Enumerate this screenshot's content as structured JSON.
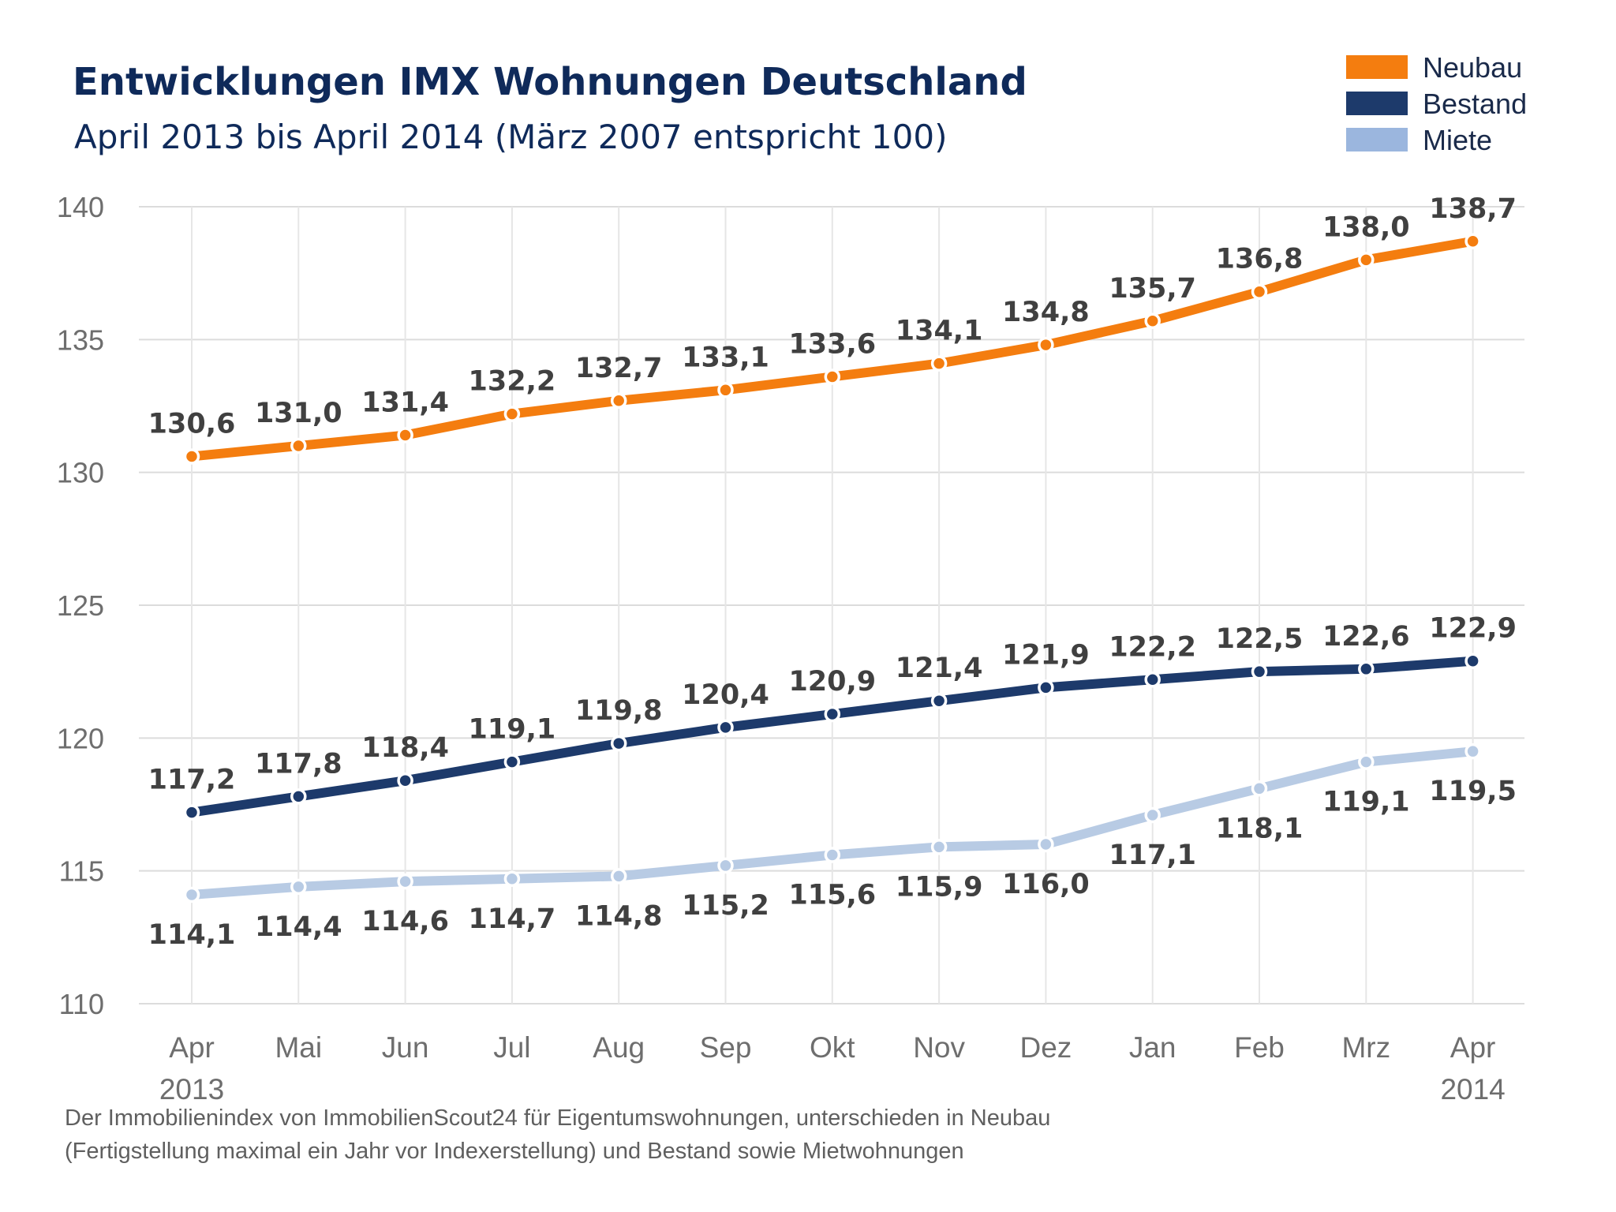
{
  "title": "Entwicklungen IMX Wohnungen Deutschland",
  "subtitle": "April 2013 bis April 2014 (März 2007 entspricht 100)",
  "footnote": [
    "Der Immobilienindex von ImmobilienScout24 für Eigentumswohnungen, unterschieden in Neubau",
    "(Fertigstellung maximal ein Jahr vor Indexerstellung) und Bestand sowie Mietwohnungen"
  ],
  "chart_data": {
    "type": "line",
    "categories": [
      "Apr",
      "Mai",
      "Jun",
      "Jul",
      "Aug",
      "Sep",
      "Okt",
      "Nov",
      "Dez",
      "Jan",
      "Feb",
      "Mrz",
      "Apr"
    ],
    "category_sublabels": [
      "2013",
      "",
      "",
      "",
      "",
      "",
      "",
      "",
      "",
      "",
      "",
      "",
      "2014"
    ],
    "ylim": [
      110,
      140
    ],
    "yticks": [
      110,
      115,
      120,
      125,
      130,
      135,
      140
    ],
    "grid": true,
    "legend_position": "top-right",
    "series": [
      {
        "name": "Neubau",
        "color": "#f47d0f",
        "values": [
          130.6,
          131.0,
          131.4,
          132.2,
          132.7,
          133.1,
          133.6,
          134.1,
          134.8,
          135.7,
          136.8,
          138.0,
          138.7
        ],
        "labels": [
          "130,6",
          "131,0",
          "131,4",
          "132,2",
          "132,7",
          "133,1",
          "133,6",
          "134,1",
          "134,8",
          "135,7",
          "136,8",
          "138,0",
          "138,7"
        ],
        "label_position": "above"
      },
      {
        "name": "Bestand",
        "color": "#1d3a6b",
        "values": [
          117.2,
          117.8,
          118.4,
          119.1,
          119.8,
          120.4,
          120.9,
          121.4,
          121.9,
          122.2,
          122.5,
          122.6,
          122.9
        ],
        "labels": [
          "117,2",
          "117,8",
          "118,4",
          "119,1",
          "119,8",
          "120,4",
          "120,9",
          "121,4",
          "121,9",
          "122,2",
          "122,5",
          "122,6",
          "122,9"
        ],
        "label_position": "above"
      },
      {
        "name": "Miete",
        "color": "#b8cbe4",
        "values": [
          114.1,
          114.4,
          114.6,
          114.7,
          114.8,
          115.2,
          115.6,
          115.9,
          116.0,
          117.1,
          118.1,
          119.1,
          119.5
        ],
        "labels": [
          "114,1",
          "114,4",
          "114,6",
          "114,7",
          "114,8",
          "115,2",
          "115,6",
          "115,9",
          "116,0",
          "117,1",
          "118,1",
          "119,1",
          "119,5"
        ],
        "label_position": "below"
      }
    ]
  }
}
